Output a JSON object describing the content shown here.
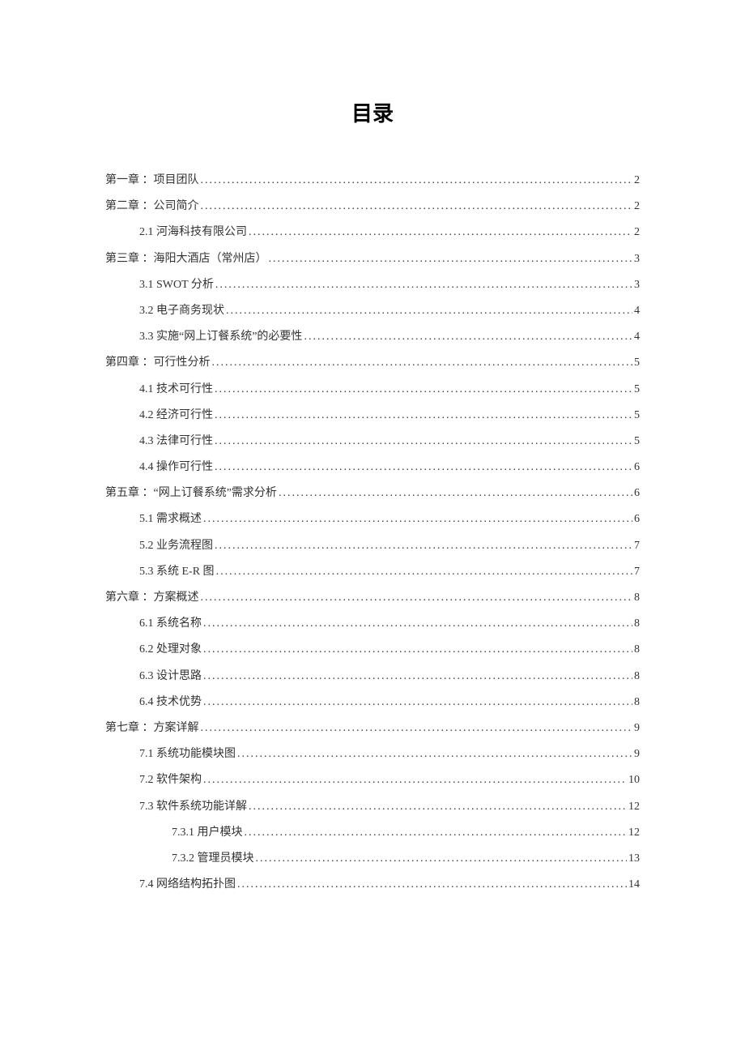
{
  "title": "目录",
  "entries": [
    {
      "level": 0,
      "label": "第一章 ：项目团队",
      "page": "2"
    },
    {
      "level": 0,
      "label": "第二章 ：公司简介",
      "page": "2"
    },
    {
      "level": 1,
      "label": "2.1 河海科技有限公司",
      "page": "2"
    },
    {
      "level": 0,
      "label": "第三章 ：海阳大酒店（常州店）",
      "page": "3"
    },
    {
      "level": 1,
      "label": "3.1 SWOT 分析",
      "page": "3"
    },
    {
      "level": 1,
      "label": "3.2 电子商务现状",
      "page": "4"
    },
    {
      "level": 1,
      "label": "3.3 实施“网上订餐系统”的必要性",
      "page": "4"
    },
    {
      "level": 0,
      "label": "第四章 ：可行性分析",
      "page": "5"
    },
    {
      "level": 1,
      "label": "4.1 技术可行性",
      "page": "5"
    },
    {
      "level": 1,
      "label": "4.2 经济可行性",
      "page": "5"
    },
    {
      "level": 1,
      "label": "4.3 法律可行性",
      "page": "5"
    },
    {
      "level": 1,
      "label": "4.4 操作可行性",
      "page": "6"
    },
    {
      "level": 0,
      "label": "第五章 ：“网上订餐系统”需求分析",
      "page": "6"
    },
    {
      "level": 1,
      "label": "5.1 需求概述",
      "page": "6"
    },
    {
      "level": 1,
      "label": "5.2 业务流程图",
      "page": "7"
    },
    {
      "level": 1,
      "label": "5.3 系统 E-R 图",
      "page": "7"
    },
    {
      "level": 0,
      "label": "第六章 ：方案概述",
      "page": "8"
    },
    {
      "level": 1,
      "label": "6.1 系统名称",
      "page": "8"
    },
    {
      "level": 1,
      "label": "6.2 处理对象",
      "page": "8"
    },
    {
      "level": 1,
      "label": "6.3 设计思路",
      "page": "8"
    },
    {
      "level": 1,
      "label": "6.4 技术优势",
      "page": "8"
    },
    {
      "level": 0,
      "label": "第七章 ：方案详解",
      "page": "9"
    },
    {
      "level": 1,
      "label": "7.1 系统功能模块图",
      "page": "9"
    },
    {
      "level": 1,
      "label": "7.2 软件架构",
      "page": "10"
    },
    {
      "level": 1,
      "label": "7.3 软件系统功能详解",
      "page": "12"
    },
    {
      "level": 2,
      "label": "7.3.1 用户模块",
      "page": "12"
    },
    {
      "level": 2,
      "label": "7.3.2 管理员模块",
      "page": "13"
    },
    {
      "level": 1,
      "label": "7.4 网络结构拓扑图",
      "page": "14"
    }
  ],
  "colors": {
    "background": "#ffffff",
    "text": "#333333",
    "title": "#000000"
  },
  "typography": {
    "title_fontsize": 26,
    "entry_fontsize": 14,
    "line_height": 2.3
  }
}
